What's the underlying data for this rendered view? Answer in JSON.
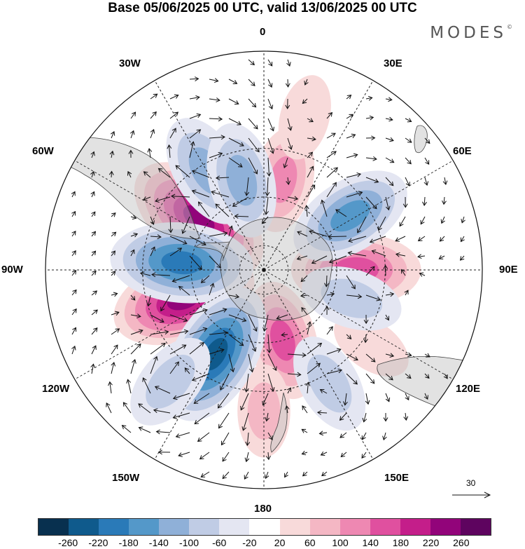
{
  "title": "Base 05/06/2025 00 UTC, valid 13/06/2025 00 UTC",
  "brand": "MODES",
  "brand_mark": "©",
  "longitude_labels": {
    "0": "0",
    "30E": "30E",
    "60E": "60E",
    "90E": "90E",
    "120E": "120E",
    "150E": "150E",
    "180": "180",
    "150W": "150W",
    "120W": "120W",
    "90W": "90W",
    "60W": "60W",
    "30W": "30W"
  },
  "reference_vector": "30",
  "colorbar": {
    "colors": [
      "#08304f",
      "#0f5a8c",
      "#2a7ab8",
      "#5498c9",
      "#8fb0d8",
      "#c0cce5",
      "#e4e6f2",
      "#ffffff",
      "#f8dada",
      "#f4b7c4",
      "#ee88b2",
      "#e0509f",
      "#c41e8a",
      "#92047a",
      "#5e045f"
    ],
    "ticks": [
      "-260",
      "-220",
      "-180",
      "-140",
      "-100",
      "-60",
      "-20",
      "20",
      "60",
      "100",
      "140",
      "180",
      "220",
      "260"
    ]
  },
  "anomaly_centers": [
    {
      "lon": -52,
      "lat": -56,
      "value": 230
    },
    {
      "lon": -110,
      "lat": -55,
      "value": 220
    },
    {
      "lon": 90,
      "lat": -52,
      "value": 170
    },
    {
      "lon": 165,
      "lat": -60,
      "value": 140
    },
    {
      "lon": 12,
      "lat": -52,
      "value": 100
    },
    {
      "lon": 180,
      "lat": -32,
      "value": 60
    },
    {
      "lon": 15,
      "lat": -25,
      "value": 40
    },
    {
      "lon": 125,
      "lat": -36,
      "value": 35
    },
    {
      "lon": -85,
      "lat": -56,
      "value": -210
    },
    {
      "lon": -150,
      "lat": -50,
      "value": -220
    },
    {
      "lon": 58,
      "lat": -48,
      "value": -160
    },
    {
      "lon": -30,
      "lat": -43,
      "value": -130
    },
    {
      "lon": -14,
      "lat": -52,
      "value": -130
    },
    {
      "lon": 108,
      "lat": -52,
      "value": -90
    },
    {
      "lon": 150,
      "lat": -36,
      "value": -90
    },
    {
      "lon": -140,
      "lat": -30,
      "value": -90
    }
  ]
}
